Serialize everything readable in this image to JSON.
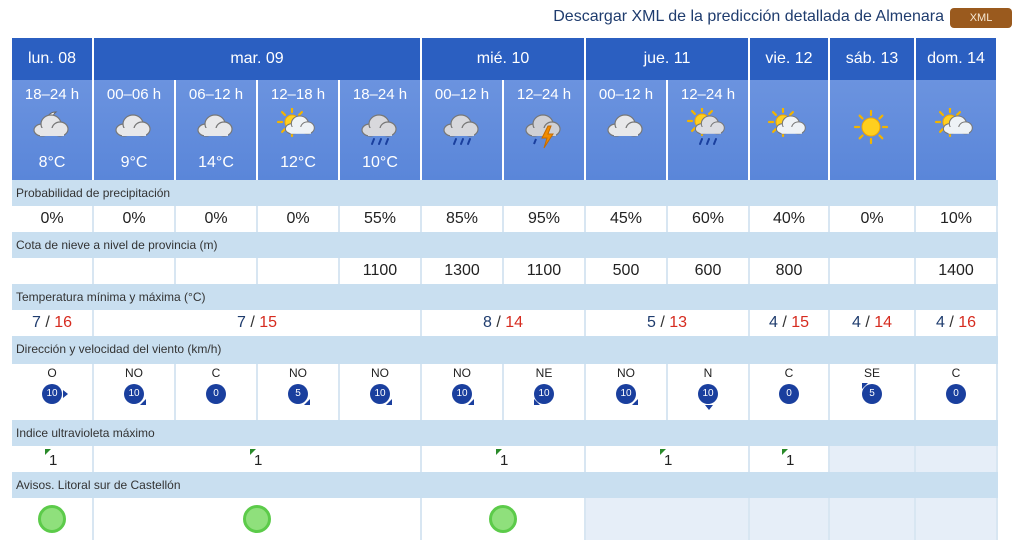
{
  "header": {
    "xml_title": "Descargar XML de la predicción detallada de Almenara",
    "xml_button": "XML"
  },
  "days": [
    {
      "label": "lun. 08",
      "span": 1
    },
    {
      "label": "mar. 09",
      "span": 4
    },
    {
      "label": "mié. 10",
      "span": 2
    },
    {
      "label": "jue. 11",
      "span": 2
    },
    {
      "label": "vie. 12",
      "span": 1
    },
    {
      "label": "sáb. 13",
      "span": 1
    },
    {
      "label": "dom. 14",
      "span": 1
    }
  ],
  "periods": [
    {
      "time": "18–24 h",
      "icon": "moon-cloud-icon",
      "temp": "8°C"
    },
    {
      "time": "00–06 h",
      "icon": "cloud-icon",
      "temp": "9°C"
    },
    {
      "time": "06–12 h",
      "icon": "cloud-icon",
      "temp": "14°C"
    },
    {
      "time": "12–18 h",
      "icon": "sun-cloud-icon",
      "temp": "12°C"
    },
    {
      "time": "18–24 h",
      "icon": "rain-cloud-icon",
      "temp": "10°C"
    },
    {
      "time": "00–12 h",
      "icon": "rain-cloud-icon",
      "temp": ""
    },
    {
      "time": "12–24 h",
      "icon": "storm-cloud-icon",
      "temp": ""
    },
    {
      "time": "00–12 h",
      "icon": "cloud-icon",
      "temp": ""
    },
    {
      "time": "12–24 h",
      "icon": "sun-rain-cloud-icon",
      "temp": ""
    },
    {
      "time": "",
      "icon": "sun-cloud-icon",
      "temp": ""
    },
    {
      "time": "",
      "icon": "sun-icon",
      "temp": ""
    },
    {
      "time": "",
      "icon": "sun-cloud-icon",
      "temp": ""
    }
  ],
  "precip": {
    "label": "Probabilidad de precipitación",
    "values": [
      "0%",
      "0%",
      "0%",
      "0%",
      "55%",
      "85%",
      "95%",
      "45%",
      "60%",
      "40%",
      "0%",
      "10%"
    ]
  },
  "snow": {
    "label": "Cota de nieve a nivel de provincia (m)",
    "values": [
      "",
      "",
      "",
      "",
      "1100",
      "1300",
      "1100",
      "500",
      "600",
      "800",
      "",
      "1400"
    ]
  },
  "temps": {
    "label": "Temperatura mínima y máxima (°C)",
    "groups": [
      {
        "min": "7",
        "max": "16",
        "span": 1
      },
      {
        "min": "7",
        "max": "15",
        "span": 4
      },
      {
        "min": "8",
        "max": "14",
        "span": 2
      },
      {
        "min": "5",
        "max": "13",
        "span": 2
      },
      {
        "min": "4",
        "max": "15",
        "span": 1
      },
      {
        "min": "4",
        "max": "14",
        "span": 1
      },
      {
        "min": "4",
        "max": "16",
        "span": 1
      }
    ]
  },
  "wind": {
    "label": "Dirección y velocidad del viento (km/h)",
    "values": [
      {
        "dir": "O",
        "speed": "10"
      },
      {
        "dir": "NO",
        "speed": "10"
      },
      {
        "dir": "C",
        "speed": "0"
      },
      {
        "dir": "NO",
        "speed": "5"
      },
      {
        "dir": "NO",
        "speed": "10"
      },
      {
        "dir": "NO",
        "speed": "10"
      },
      {
        "dir": "NE",
        "speed": "10"
      },
      {
        "dir": "NO",
        "speed": "10"
      },
      {
        "dir": "N",
        "speed": "10"
      },
      {
        "dir": "C",
        "speed": "0"
      },
      {
        "dir": "SE",
        "speed": "5"
      },
      {
        "dir": "C",
        "speed": "0"
      }
    ]
  },
  "uv": {
    "label": "Indice ultravioleta máximo",
    "groups": [
      {
        "value": "1",
        "span": 1
      },
      {
        "value": "1",
        "span": 4
      },
      {
        "value": "1",
        "span": 2
      },
      {
        "value": "1",
        "span": 2
      },
      {
        "value": "1",
        "span": 1
      },
      {
        "value": "",
        "span": 1
      },
      {
        "value": "",
        "span": 1
      }
    ]
  },
  "alerts": {
    "label": "Avisos. Litoral sur de Castellón",
    "groups": [
      {
        "level": "green",
        "span": 1
      },
      {
        "level": "green",
        "span": 4
      },
      {
        "level": "green",
        "span": 2
      },
      {
        "level": "",
        "span": 2
      },
      {
        "level": "",
        "span": 1
      },
      {
        "level": "",
        "span": 1
      },
      {
        "level": "",
        "span": 1
      }
    ]
  },
  "colors": {
    "day_header": "#2b5fc1",
    "period_bg": "#5a86d9",
    "label_bg": "#c9dff0",
    "temp_max": "#d62b1f",
    "alert_green": "#8fe07c",
    "wind_badge": "#1a3f9e"
  }
}
